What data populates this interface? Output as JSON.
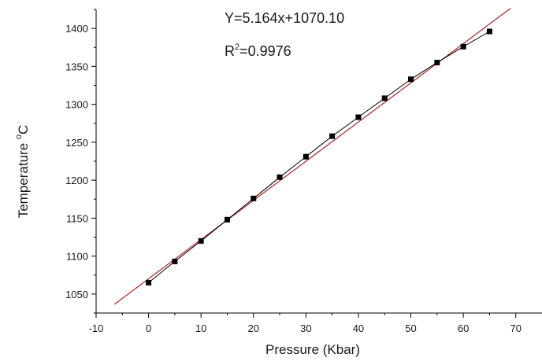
{
  "chart_data": {
    "type": "scatter",
    "title": "",
    "xlabel": "Pressure (Kbar)",
    "ylabel_base": "Temperature ",
    "ylabel_sup": "o",
    "ylabel_tail": "C",
    "xlim": [
      -10,
      75
    ],
    "ylim": [
      1025,
      1425
    ],
    "x_ticks": [
      -10,
      0,
      10,
      20,
      30,
      40,
      50,
      60,
      70
    ],
    "y_ticks": [
      1050,
      1100,
      1150,
      1200,
      1250,
      1300,
      1350,
      1400
    ],
    "grid": false,
    "series": [
      {
        "marker": "square",
        "x": [
          0,
          5,
          10,
          15,
          20,
          25,
          30,
          35,
          40,
          45,
          50,
          55,
          60,
          65
        ],
        "y": [
          1065,
          1093,
          1120,
          1148,
          1176,
          1204,
          1231,
          1258,
          1283,
          1308,
          1333,
          1355,
          1376,
          1396
        ]
      }
    ],
    "fit_line": {
      "slope": 5.164,
      "intercept": 1070.1,
      "x_range": [
        -6.5,
        69
      ],
      "color": "#b22222"
    },
    "annotations": {
      "equation": "Y=5.164x+1070.10",
      "r2_base": "R",
      "r2_sup": "2",
      "r2_value": "=0.9976"
    }
  }
}
